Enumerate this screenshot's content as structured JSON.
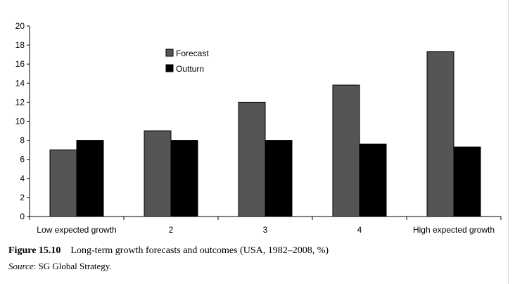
{
  "chart_data": {
    "type": "bar",
    "categories": [
      "Low expected growth",
      "2",
      "3",
      "4",
      "High expected growth"
    ],
    "series": [
      {
        "name": "Forecast",
        "values": [
          7.0,
          9.0,
          12.0,
          13.8,
          17.3
        ],
        "color": "#555555"
      },
      {
        "name": "Outturn",
        "values": [
          8.0,
          8.0,
          8.0,
          7.6,
          7.3
        ],
        "color": "#000000"
      }
    ],
    "title": "",
    "xlabel": "",
    "ylabel": "",
    "ylim": [
      0,
      20
    ],
    "yticks": [
      "0",
      "2",
      "4",
      "6",
      "8",
      "10",
      "12",
      "14",
      "16",
      "18",
      "20"
    ],
    "grid": false,
    "legend_position": "top-center"
  },
  "caption": {
    "figure_number": "Figure 15.10",
    "text": "Long-term growth forecasts and outcomes (USA, 1982–2008, %)"
  },
  "source": {
    "label": "Source",
    "text": ": SG Global Strategy."
  }
}
